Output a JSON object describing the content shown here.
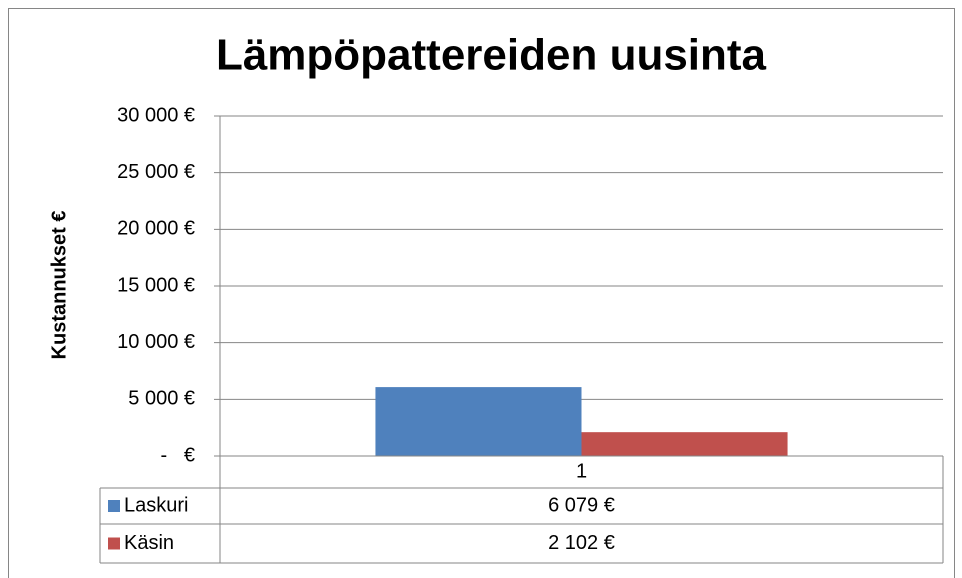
{
  "chart_data": {
    "type": "bar",
    "title": "Lämpöpattereiden uusinta",
    "y_label": "Kustannukset €",
    "categories": [
      "1"
    ],
    "series": [
      {
        "name": "Laskuri",
        "color": "#4f81bd",
        "values": [
          6079
        ],
        "value_labels": [
          "6 079 €"
        ]
      },
      {
        "name": "Käsin",
        "color": "#c0504d",
        "values": [
          2102
        ],
        "value_labels": [
          "2 102 €"
        ]
      }
    ],
    "ylim": [
      0,
      30000
    ],
    "yticks": [
      {
        "value": 0,
        "label": "-   €"
      },
      {
        "value": 5000,
        "label": "5 000 €"
      },
      {
        "value": 10000,
        "label": "10 000 €"
      },
      {
        "value": 15000,
        "label": "15 000 €"
      },
      {
        "value": 20000,
        "label": "20 000 €"
      },
      {
        "value": 25000,
        "label": "25 000 €"
      },
      {
        "value": 30000,
        "label": "30 000 €"
      }
    ],
    "grid": true,
    "data_table": true
  }
}
